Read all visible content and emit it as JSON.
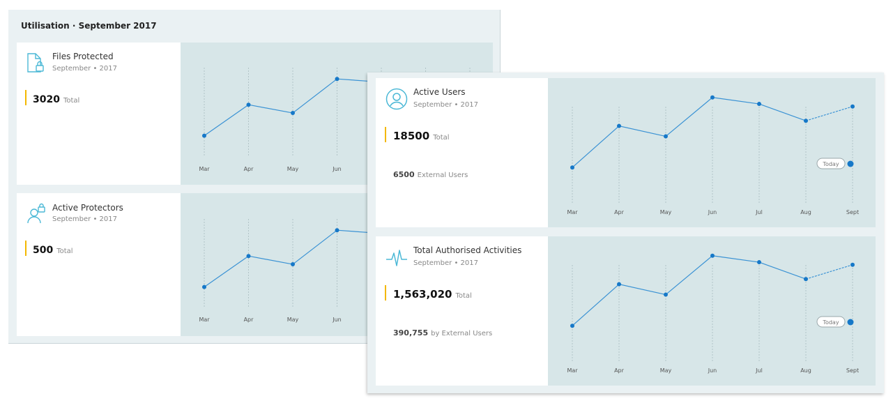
{
  "utilisation": {
    "title": "Utilisation · September 2017"
  },
  "cards": {
    "files_protected": {
      "title": "Files Protected",
      "subtitle": "September • 2017",
      "total": "3020",
      "total_label": "Total",
      "icon": "file-lock-icon"
    },
    "active_protectors": {
      "title": "Active Protectors",
      "subtitle": "September • 2017",
      "total": "500",
      "total_label": "Total",
      "icon": "user-lock-icon"
    },
    "active_users": {
      "title": "Active Users",
      "subtitle": "September • 2017",
      "total": "18500",
      "total_label": "Total",
      "external": "6500",
      "external_label": "External Users",
      "today_label": "Today",
      "icon": "user-circle-icon"
    },
    "total_authorised_activities": {
      "title": "Total Authorised Activities",
      "subtitle": "September • 2017",
      "total": "1,563,020",
      "total_label": "Total",
      "external": "390,755",
      "external_label": "by External Users",
      "today_label": "Today",
      "icon": "activity-pulse-icon"
    }
  },
  "colors": {
    "accent_line": "#3a92d4",
    "accent_point": "#1678c8",
    "total_marker": "#f3b800",
    "chart_background": "#d7e6e8",
    "icon": "#4bb8d6"
  },
  "chart_data": [
    {
      "type": "line",
      "name": "files-protected-chart",
      "x": [
        "Mar",
        "Apr",
        "May",
        "Jun"
      ],
      "series": [
        {
          "values": [
            0.3,
            0.6,
            0.52,
            0.85
          ]
        }
      ],
      "ylim": [
        0,
        1
      ],
      "grid": "vertical dotted",
      "note_partial": "line continues under overlapping panel"
    },
    {
      "type": "line",
      "name": "active-protectors-chart",
      "x": [
        "Mar",
        "Apr",
        "May",
        "Jun"
      ],
      "series": [
        {
          "values": [
            0.3,
            0.6,
            0.52,
            0.85
          ]
        }
      ],
      "ylim": [
        0,
        1
      ],
      "grid": "vertical dotted"
    },
    {
      "type": "line",
      "name": "active-users-chart",
      "x": [
        "Mar",
        "Apr",
        "May",
        "Jun",
        "Jul",
        "Aug",
        "Sept"
      ],
      "series": [
        {
          "values": [
            0.3,
            0.62,
            0.54,
            0.84,
            0.79,
            0.66,
            0.77
          ]
        }
      ],
      "ylim": [
        0,
        1
      ],
      "grid": "vertical dotted",
      "today_index": 6
    },
    {
      "type": "line",
      "name": "total-authorised-activities-chart",
      "x": [
        "Mar",
        "Apr",
        "May",
        "Jun",
        "Jul",
        "Aug",
        "Sept"
      ],
      "series": [
        {
          "values": [
            0.3,
            0.62,
            0.54,
            0.84,
            0.79,
            0.66,
            0.77
          ]
        }
      ],
      "ylim": [
        0,
        1
      ],
      "grid": "vertical dotted",
      "today_index": 6
    }
  ]
}
